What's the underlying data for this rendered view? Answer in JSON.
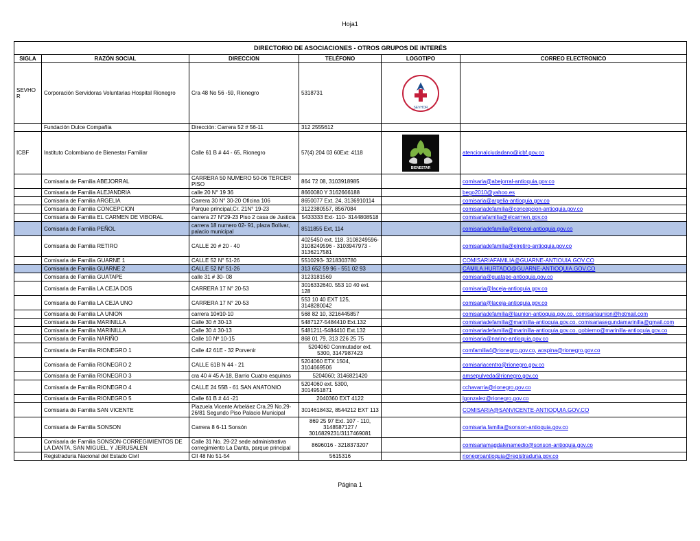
{
  "page": {
    "headerLabel": "Hoja1",
    "footerLabel": "Página 1",
    "title": "DIRECTORIO DE ASOCIACIONES - OTROS GRUPOS DE INTERÉS"
  },
  "columns": {
    "sigla": "SIGLA",
    "razon": "RAZÓN SOCIAL",
    "direccion": "DIRECCION",
    "telefono": "TELÉFONO",
    "logotipo": "LOGOTIPO",
    "email": "CORREO ELECTRONICO"
  },
  "rows": [
    {
      "id": "r0",
      "sigla": "SEVHOR",
      "razon": "Corporación Servidoras Voluntarias Hospital Rionegro",
      "dir": "Cra 48 No 56 -59, Rionegro",
      "tel": "5318731",
      "logo": "sevhor",
      "email": "",
      "tall": true
    },
    {
      "id": "r1",
      "sigla": "",
      "razon": "Fundación Dulce Compañia",
      "dir": "Dirección: Carrera 52 # 56-11",
      "tel": "312 2555612",
      "logo": "",
      "email": ""
    },
    {
      "id": "r2",
      "sigla": "ICBF",
      "razon": "Instituto Colombiano de Bienestar Familiar",
      "dir": "Calle 61 B # 44 - 65, Rionegro",
      "tel": "57(4) 204 03 60Ext: 4118",
      "logo": "icbf",
      "email": "atencionalciudadano@icbf.gov.co",
      "icbf": true
    },
    {
      "id": "r3",
      "sigla": "",
      "razon": "Comisaria de  Familia  ABEJORRAL",
      "dir": "CARRERA 50 NUMERO 50-06 TERCER PISO",
      "tel": "864 72 08, 3103918985",
      "logo": "",
      "email": "comisaria@abejorral-antioquia.gov.co"
    },
    {
      "id": "r4",
      "sigla": "",
      "razon": "Comisaria de  Familia ALEJANDRIA",
      "dir": "calle 20 N° 19 36",
      "tel": "8660080 Y 3162666188",
      "logo": "",
      "email": "bego2010@yahoo.es"
    },
    {
      "id": "r5",
      "sigla": "",
      "razon": "Comisaria de  Familia ARGELIA",
      "dir": "Carrera 30 N° 30-20 Oficina 106",
      "tel": "8650077 Ext. 24, 3136910114",
      "logo": "",
      "email": "comisaria@argelia-antioquia.gov.co"
    },
    {
      "id": "r6",
      "sigla": "",
      "razon": "Comisaria de  Familia CONCEPCION",
      "dir": "Parque principal,Cr. 21N° 19-23",
      "tel": "3122380557, 8567084",
      "logo": "",
      "email": "comisariadefamilia@concepcion-antioquia.gov.co"
    },
    {
      "id": "r7",
      "sigla": "",
      "razon": "Comisaria de  Familia EL CARMEN DE VIBORAL",
      "dir": "carrera 27 N°29-23 Piso 2 casa de Justicia",
      "tel": "5433333 Ext- 110- 3144808518",
      "telCenter": true,
      "logo": "",
      "email": "comisariafamilia@elcarmen.gov.co"
    },
    {
      "id": "r8",
      "sigla": "",
      "razon": "Comisaria de  Familia  PEÑOL",
      "dir": "carrera 18 numero 02- 91, plaza Bolívar, palacio municipal",
      "tel": "8511855 Ext, 114",
      "logo": "",
      "email": "comisariadefamilia@elpenol-antioquia.gov.co",
      "highlight": true
    },
    {
      "id": "r9",
      "sigla": "",
      "razon": "Comisaria de  Familia RETIRO",
      "dir": "CALLE 20 # 20 - 40",
      "tel": "4025450 ext. 118. 3108249596- 3108249596 - 3103947973 - 3136217581",
      "logo": "",
      "email": "comisariadefamilia@elretiro-antioquia.gov.co"
    },
    {
      "id": "r10",
      "sigla": "",
      "razon": "Comisaria de  Familia GUARNE 1",
      "dir": "CALLE 52 N° 51-26",
      "tel": "5510293- 3218303780",
      "logo": "",
      "email": "COMISARIAFAMILIA@GUARNE-ANTIOUIA.GOV.CO"
    },
    {
      "id": "r11",
      "sigla": "",
      "razon": "Comisaria de  Familia GUARNE 2",
      "dir": "CALLE 52 N° 51-26",
      "tel": "313 652 59 96 - 551 02 93",
      "logo": "",
      "email": "CAMILA.HURTADO@GUARNE-ANTIOQUIA.GOV.CO",
      "highlight": true
    },
    {
      "id": "r12",
      "sigla": "",
      "razon": "Comisaria de  Familia GUATAPE",
      "dir": "calle 31 # 30- 08",
      "tel": "3123181569",
      "logo": "",
      "email": "comisaria@guatape-antioquia.gov.co"
    },
    {
      "id": "r13",
      "sigla": "",
      "razon": "Comisaria de  Familia  LA CEJA DOS",
      "dir": "CARRERA 17 N° 20-53",
      "tel": "3016332640. 553 10 40 ext. 128",
      "logo": "",
      "email": "comisaria@laceja-antioquia.gov.co"
    },
    {
      "id": "r14",
      "sigla": "",
      "razon": "Comisaria de  Familia LA CEJA UNO",
      "dir": "CARRERA 17 N° 20-53",
      "tel": "553 10 40  EXT 125, 3148280042",
      "logo": "",
      "email": "comisaria@laceja-antioquia.gov.co"
    },
    {
      "id": "r15",
      "sigla": "",
      "razon": "Comisaria de  Familia  LA UNION",
      "dir": "carrera 10#10-10",
      "tel": "568 82 10, 3216445857",
      "logo": "",
      "email": "comisariadefamilia@launion-antioquia.gov.co.  comisariaunion@hotmail.com"
    },
    {
      "id": "r16",
      "sigla": "",
      "razon": "Comisaria de  Familia  MARINILLA",
      "dir": "Calle 30 # 30-13",
      "tel": "5487127-5484410 Ext.132",
      "logo": "",
      "email": "comisariadefamilia@marinilla-antioquia.gov.co.   comisariasegundamarinilla@gmail.com"
    },
    {
      "id": "r17",
      "sigla": "",
      "razon": "Comisaria de  Familia MARINILLA",
      "dir": "Calle 30 # 30-13",
      "tel": "5481211-5484410 Ext.132",
      "logo": "",
      "email": "comisariadefamilia@marinilla-antioquia.gov.co.   gobierno@marinilla-antioquia.gov.co"
    },
    {
      "id": "r18",
      "sigla": "",
      "razon": "Comisaria de  Familia NARIÑO",
      "dir": "Calle 10 Nº 10-15",
      "tel": "868 01 79, 313 226 25 75",
      "logo": "",
      "email": "comisaria@narino-antioquia.gov.co"
    },
    {
      "id": "r19",
      "sigla": "",
      "razon": "Comisaria de  Familia  RIONEGRO 1",
      "dir": "Calle 42 61E - 32 Porvenir",
      "tel": "5204060 Conmutador ext. 5300, 3147987423",
      "telCenter": true,
      "logo": "",
      "email": "comfamilia4@rionegro.gov.co, aospina@rionegro.gov.co"
    },
    {
      "id": "r20",
      "sigla": "",
      "razon": "Comisaria de  Familia  RIONEGRO 2",
      "dir": "CALLE 61B N 44 - 21",
      "tel": "5204060 ETX 1504, 3104669506",
      "logo": "",
      "email": "comisariacentro@rionegro.gov.co"
    },
    {
      "id": "r21",
      "sigla": "",
      "razon": "Comisaria de  Familia  RIONEGRO 3",
      "dir": "cra 40 # 45 A-18, Barrio Cuatro esquinas",
      "tel": "5204060; 3146821420",
      "telCenter": true,
      "logo": "",
      "email": "amsepulveda@rionegro.gov.co"
    },
    {
      "id": "r22",
      "sigla": "",
      "razon": "Comisaria de  Familia RIONEGRO 4",
      "dir": "CALLE 24  55B - 61 SAN ANATONIO",
      "tel": "5204060 ext. 5300, 3014951871",
      "logo": "",
      "email": "cchavarria@rionegro.gov.co"
    },
    {
      "id": "r23",
      "sigla": "",
      "razon": "Comisaria de  Familia RIONEGRO 5",
      "dir": "Calle 61 B #  44 -21",
      "tel": "2040360 EXT 4122",
      "telCenter": true,
      "logo": "",
      "email": "lgonzalez@rionegro.gov.co"
    },
    {
      "id": "r24",
      "sigla": "",
      "razon": "Comisaria de  Familia SAN VICENTE",
      "dir": "Plazuela Vicente Arbeláez Cra.29 No.29-26/81 Segundo Piso Palacio Municipal",
      "tel": "3014618432, 8544212 EXT 113",
      "telCenter": true,
      "logo": "",
      "email": "COMISARIA@SANVICENTE-ANTIOQUIA.GOV.CO"
    },
    {
      "id": "r25",
      "sigla": "",
      "razon": "Comisaria de  Familia  SONSON",
      "dir": "Carrera 8  6-11 Sonsón",
      "tel": "869 25 97 Ext. 107 - 110, 3148587127 / 3016829231/3117469081",
      "telCenter": true,
      "logo": "",
      "email": "comisaria.familia@sonson-antioquia.gov.co"
    },
    {
      "id": "r26",
      "sigla": "",
      "razon": "Comisaria de  Familia  SONSON-CORREGIMIENTOS DE LA DANTA, SAN MIGUEL, Y JERUSALEN",
      "dir": "Calle 31 No.  29-22 sede administrativa corregimiento La Danta, parque principal",
      "tel": "8696016 - 3218373207",
      "telCenter": true,
      "logo": "",
      "email": "comisariamagdalenamedio@sonson-antioquia.gov.co"
    },
    {
      "id": "r27",
      "sigla": "",
      "razon": "Registraduria Nacional del Estado Civil",
      "dir": "Cll 48 No 51-54",
      "tel": "5615316",
      "telCenter": true,
      "logo": "",
      "email": "rionegroantioquia@registraduria.gov.co"
    }
  ],
  "style": {
    "background": "#ffffff",
    "text": "#000000",
    "link": "#0000ee",
    "highlight": "#b4c6e7",
    "border": "#000000",
    "baseFontSize": 8
  }
}
